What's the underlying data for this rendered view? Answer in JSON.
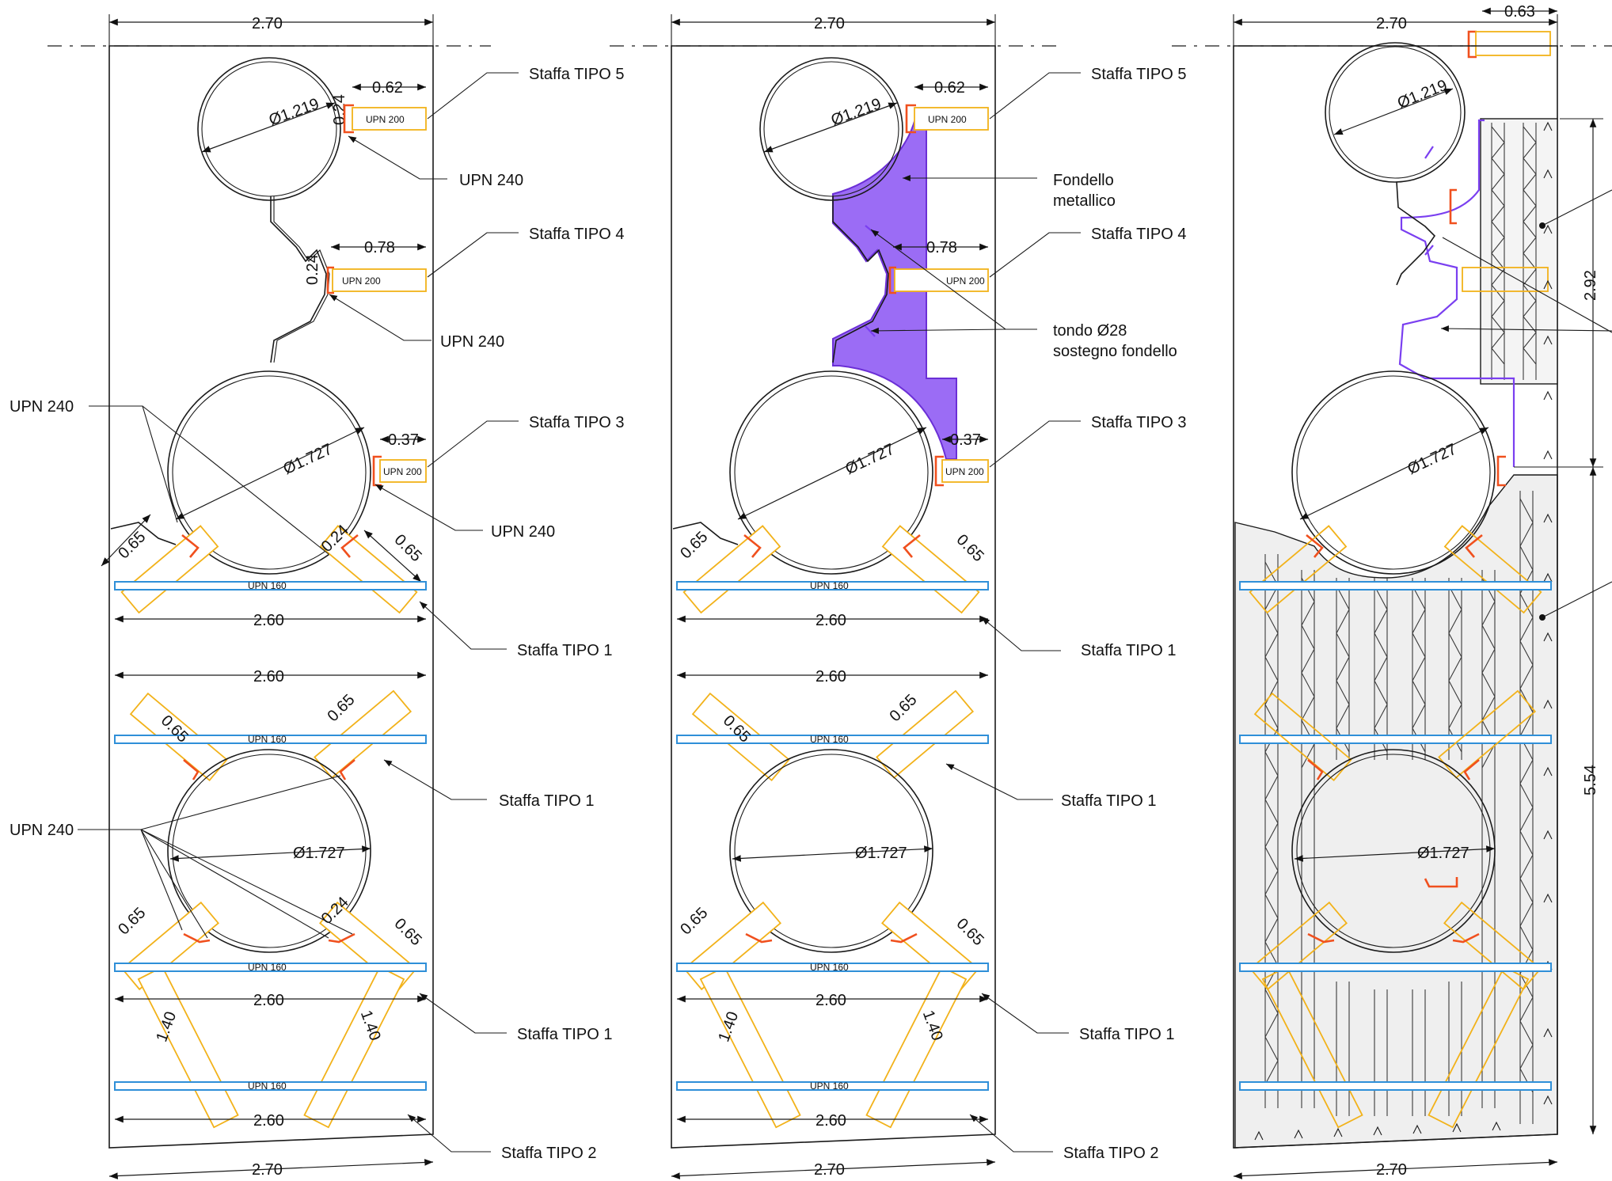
{
  "drawing": {
    "panels": [
      "section-a",
      "section-b",
      "section-c"
    ]
  },
  "dims": {
    "width_270": "2.70",
    "width_260": "2.60",
    "d_0_62": "0.62",
    "d_0_78": "0.78",
    "d_0_37": "0.37",
    "d_0_24": "0.24",
    "d_0_65": "0.65",
    "d_1_40": "1.40",
    "d_0_63": "0.63",
    "d_2_92": "2.92",
    "d_5_54": "5.54",
    "dia_1219": "Ø1.219",
    "dia_1727": "Ø1.727"
  },
  "profiles": {
    "upn200": "UPN 200",
    "upn160": "UPN 160",
    "upn240": "UPN 240"
  },
  "labels": {
    "staffa_5": "Staffa TIPO 5",
    "staffa_4": "Staffa TIPO 4",
    "staffa_3": "Staffa TIPO 3",
    "staffa_1": "Staffa TIPO 1",
    "staffa_2": "Staffa TIPO 2",
    "upn_240": "UPN 240",
    "fondello_1": "Fondello",
    "fondello_2": "metallico",
    "tondo_1": "tondo Ø28",
    "tondo_2": "sostegno fondello"
  },
  "colors": {
    "upn200": "#f2b21a",
    "upn160": "#2f8fd8",
    "upn240": "#f0501e",
    "fondello": "#9b6cf5",
    "concrete": "#efefef"
  }
}
